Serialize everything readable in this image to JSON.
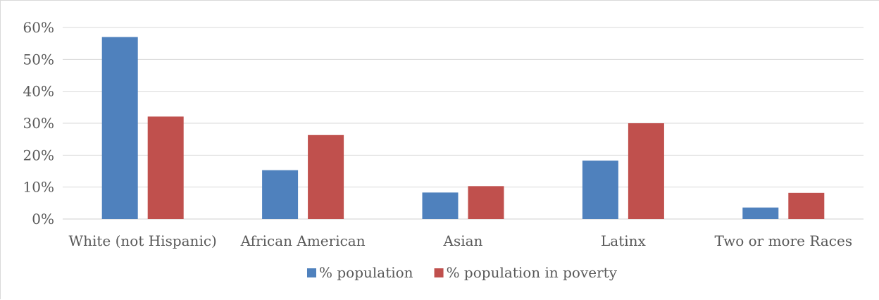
{
  "chart_data": {
    "type": "bar",
    "title": "",
    "xlabel": "",
    "ylabel": "",
    "categories": [
      "White (not Hispanic)",
      "African American",
      "Asian",
      "Latinx",
      "Two or more Races"
    ],
    "series": [
      {
        "name": "% population",
        "color": "#4f81bd",
        "values": [
          0.57,
          0.153,
          0.083,
          0.183,
          0.036
        ]
      },
      {
        "name": "% population in poverty",
        "color": "#c0504d",
        "values": [
          0.321,
          0.263,
          0.103,
          0.3,
          0.082
        ]
      }
    ],
    "ylim": [
      0,
      0.6
    ],
    "yticks": [
      0,
      0.1,
      0.2,
      0.3,
      0.4,
      0.5,
      0.6
    ],
    "ytick_labels": [
      "0%",
      "10%",
      "20%",
      "30%",
      "40%",
      "50%",
      "60%"
    ],
    "grid": true,
    "legend_position": "bottom"
  }
}
